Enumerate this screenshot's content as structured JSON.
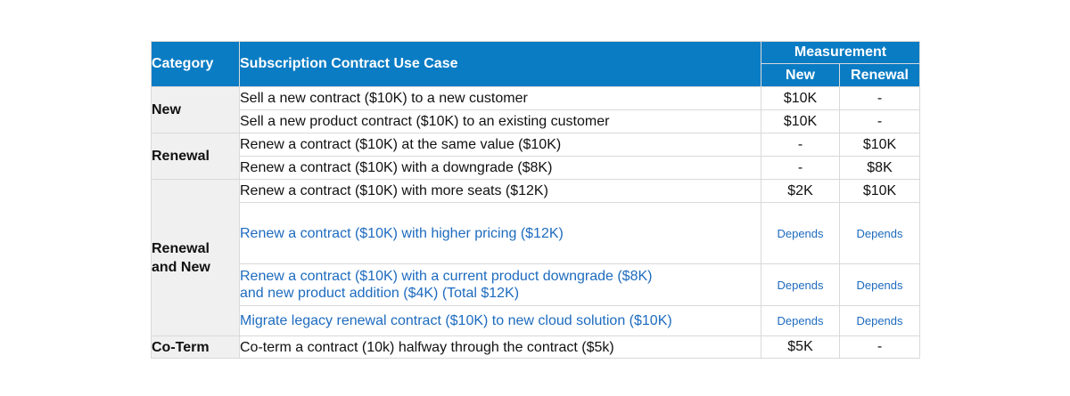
{
  "header": {
    "category": "Category",
    "use_case": "Subscription Contract Use Case",
    "measurement": "Measurement",
    "new": "New",
    "renewal": "Renewal"
  },
  "categories": {
    "new": "New",
    "renewal": "Renewal",
    "renewal_and_new_line1": "Renewal",
    "renewal_and_new_line2": "and New",
    "coterm": "Co-Term"
  },
  "rows": [
    {
      "use_case": "Sell a new contract ($10K) to a new customer",
      "new": "$10K",
      "renewal": "-"
    },
    {
      "use_case": "Sell a new product contract ($10K) to an existing customer",
      "new": "$10K",
      "renewal": "-"
    },
    {
      "use_case": "Renew a contract ($10K) at the same value ($10K)",
      "new": "-",
      "renewal": "$10K"
    },
    {
      "use_case": "Renew a contract ($10K) with a downgrade ($8K)",
      "new": "-",
      "renewal": "$8K"
    },
    {
      "use_case": "Renew a contract ($10K) with more seats ($12K)",
      "new": "$2K",
      "renewal": "$10K"
    },
    {
      "use_case": "Renew a contract ($10K) with higher pricing ($12K)",
      "new": "Depends",
      "renewal": "Depends"
    },
    {
      "use_case_line1": "Renew a contract ($10K) with a current product downgrade ($8K)",
      "use_case_line2": "and new product addition ($4K) (Total $12K)",
      "new": "Depends",
      "renewal": "Depends"
    },
    {
      "use_case": "Migrate legacy renewal contract ($10K) to new cloud solution ($10K)",
      "new": "Depends",
      "renewal": "Depends"
    },
    {
      "use_case": "Co-term a contract (10k) halfway through the contract ($5k)",
      "new": "$5K",
      "renewal": "-"
    }
  ],
  "colors": {
    "header_bg": "#0a7cc4",
    "header_text": "#ffffff",
    "category_bg": "#f0f0f0",
    "highlight_text": "#1d6bbf",
    "grid": "#d9d9d9"
  }
}
